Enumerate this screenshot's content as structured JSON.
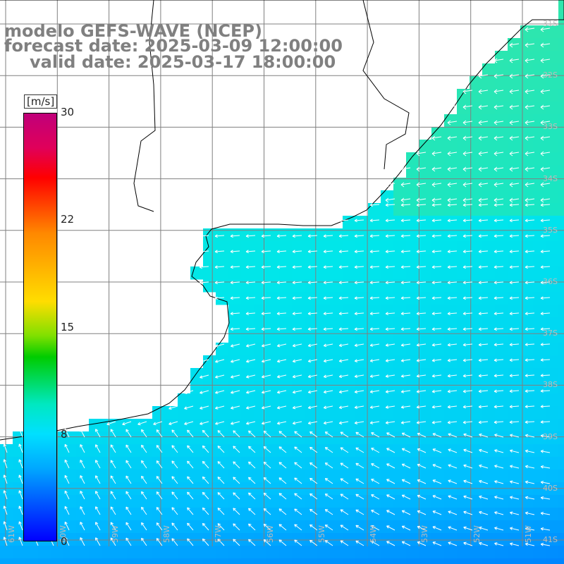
{
  "title": {
    "line1": "modelo GEFS-WAVE (NCEP)",
    "line2": "forecast date: 2025-03-09 12:00:00",
    "line3": "valid date: 2025-03-17 18:00:00"
  },
  "colorbar": {
    "unit": "[m/s]",
    "min": 0,
    "max": 30,
    "ticks": [
      "30",
      "22",
      "15",
      "8",
      "0"
    ],
    "colors": [
      "#0000ff",
      "#0044ff",
      "#00a8ff",
      "#00e0ff",
      "#00e8c0",
      "#00cc00",
      "#80e000",
      "#ffdd00",
      "#ff8800",
      "#ff0000",
      "#e0005a",
      "#c0007a"
    ]
  },
  "map": {
    "variable": "wind speed",
    "latitude_labels": [
      "31S",
      "32S",
      "33S",
      "34S",
      "35S",
      "36S",
      "37S",
      "38S",
      "39S",
      "40S",
      "41S"
    ],
    "longitude_labels": [
      "61W",
      "60W",
      "59W",
      "58W",
      "57W",
      "56W",
      "55W",
      "54W",
      "53W",
      "52W",
      "51W"
    ],
    "field_colors": {
      "land": "#ffffff",
      "coast": "#000000",
      "grid": "#808080",
      "arrows": "#ffffff"
    }
  }
}
